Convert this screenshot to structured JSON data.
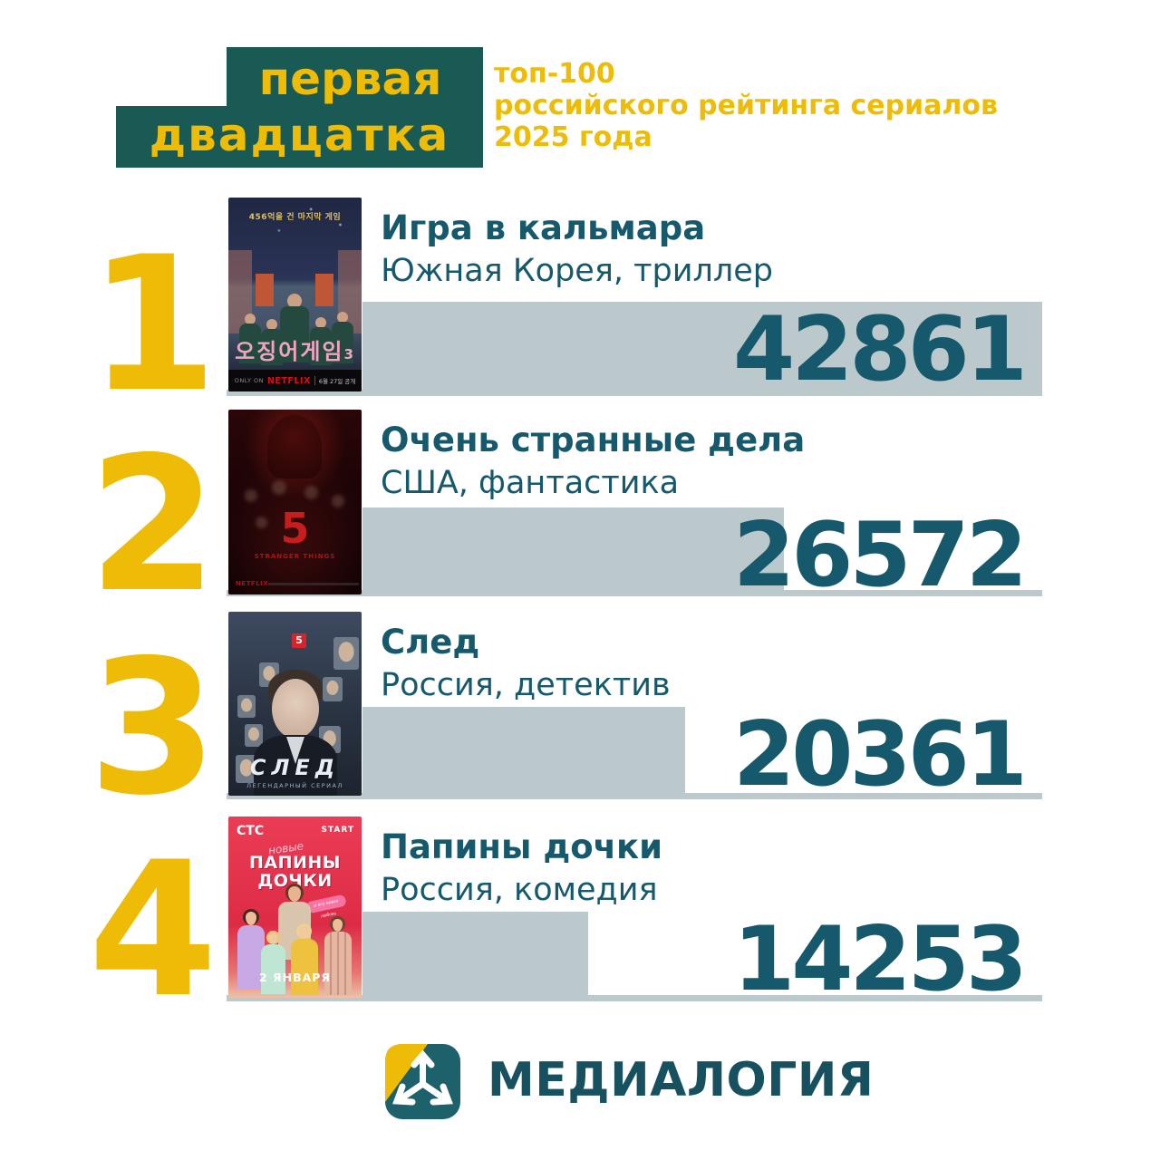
{
  "colors": {
    "yellow": "#eebc06",
    "teal_box": "#1a5a54",
    "teal_text": "#16596c",
    "bar_gray": "#bbc8cc",
    "netflix_red": "#e50914",
    "poster_red": "#dd2b46",
    "logo_teal": "#1d616b"
  },
  "header": {
    "badge_line1": "первая",
    "badge_line2": "двадцатка",
    "subtitle_line1": "топ-100",
    "subtitle_line2": "российского рейтинга сериалов",
    "subtitle_line3": "2025 года"
  },
  "chart_data": {
    "type": "bar",
    "orientation": "horizontal",
    "title": "первая двадцатка топ-100 российского рейтинга сериалов 2025 года",
    "categories": [
      "Игра в кальмара",
      "Очень странные дела",
      "След",
      "Папины дочки"
    ],
    "values": [
      42861,
      26572,
      20361,
      14253
    ],
    "annotations": [
      "Южная Корея, триллер",
      "США, фантастика",
      "Россия, детектив",
      "Россия, комедия"
    ],
    "ranks": [
      "1",
      "2",
      "3",
      "4"
    ],
    "bar_color": "#bbc8cc",
    "value_label_color": "#16596c",
    "grid": false,
    "legend": false,
    "xlim": [
      0,
      42861
    ]
  },
  "rows": [
    {
      "rank": "1",
      "title": "Игра в кальмара",
      "subtitle": "Южная Корея, триллер",
      "value": "42861",
      "poster": {
        "top_caption": "456억을 건 마지막 게임",
        "logo": "오징어게임",
        "logo_suffix": "3",
        "only_on": "ONLY ON",
        "brand": "NETFLIX",
        "release": "6월 27일 공개"
      }
    },
    {
      "rank": "2",
      "title": "Очень странные дела",
      "subtitle": "США, фантастика",
      "value": "26572",
      "poster": {
        "season": "5",
        "logo": "STRANGER THINGS",
        "brand": "NETFLIX"
      }
    },
    {
      "rank": "3",
      "title": "След",
      "subtitle": "Россия, детектив",
      "value": "20361",
      "poster": {
        "channel": "5",
        "logo": "СЛЕД",
        "tagline": "ЛЕГЕНДАРНЫЙ СЕРИАЛ"
      }
    },
    {
      "rank": "4",
      "title": "Папины дочки",
      "subtitle": "Россия, комедия",
      "value": "14253",
      "poster": {
        "channel": "СТС",
        "platform": "START",
        "script_word": "новые",
        "logo_line1": "ПАПИНЫ",
        "logo_line2": "ДОЧКИ",
        "heart_note": "и его новая любовь",
        "date": "2 ЯНВАРЯ"
      }
    }
  ],
  "footer": {
    "brand": "МЕДИАЛОГИЯ"
  }
}
